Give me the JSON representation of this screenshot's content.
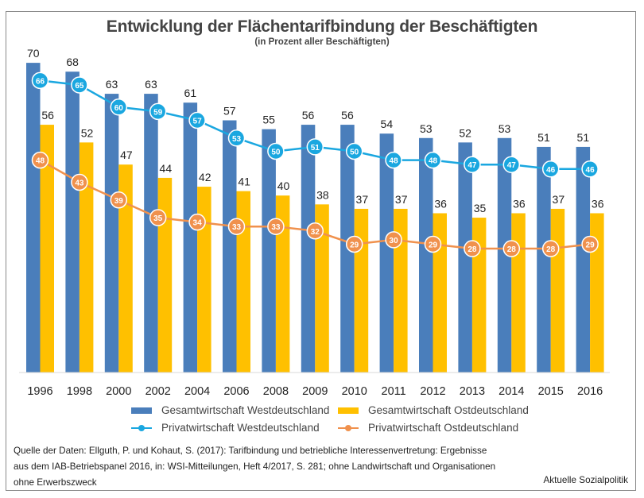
{
  "chart_data": {
    "type": "bar",
    "title": "Entwicklung der Flächentarifbindung der Beschäftigten",
    "subtitle": "(in Prozent aller Beschäftigten)",
    "xlabel": "",
    "ylabel": "",
    "ylim": [
      0,
      70
    ],
    "grid": false,
    "legend_position": "bottom",
    "categories": [
      "1996",
      "1998",
      "2000",
      "2002",
      "2004",
      "2006",
      "2008",
      "2009",
      "2010",
      "2011",
      "2012",
      "2013",
      "2014",
      "2015",
      "2016"
    ],
    "series": [
      {
        "name": "Gesamtwirtschaft Westdeutschland",
        "kind": "bar",
        "color": "#4a7ebb",
        "values": [
          70,
          68,
          63,
          63,
          61,
          57,
          55,
          56,
          56,
          54,
          53,
          52,
          53,
          51,
          51
        ]
      },
      {
        "name": "Gesamtwirtschaft Ostdeutschland",
        "kind": "bar",
        "color": "#ffc000",
        "values": [
          56,
          52,
          47,
          44,
          42,
          41,
          40,
          38,
          37,
          37,
          36,
          35,
          36,
          37,
          36
        ]
      },
      {
        "name": "Privatwirtschaft Westdeutschland",
        "kind": "line",
        "color": "#1aa7e0",
        "values": [
          66,
          65,
          60,
          59,
          57,
          53,
          50,
          51,
          50,
          48,
          48,
          47,
          47,
          46,
          46
        ]
      },
      {
        "name": "Privatwirtschaft Ostdeutschland",
        "kind": "line",
        "color": "#f0914d",
        "values": [
          48,
          43,
          39,
          35,
          34,
          33,
          33,
          32,
          29,
          30,
          29,
          28,
          28,
          28,
          29
        ]
      }
    ]
  },
  "legend": {
    "items": [
      {
        "label": "Gesamtwirtschaft Westdeutschland",
        "color": "#4a7ebb"
      },
      {
        "label": "Gesamtwirtschaft Ostdeutschland",
        "color": "#ffc000"
      },
      {
        "label": "Privatwirtschaft Westdeutschland",
        "color": "#1aa7e0"
      },
      {
        "label": "Privatwirtschaft Ostdeutschland",
        "color": "#f0914d"
      }
    ]
  },
  "footer": {
    "source_line1": "Quelle der Daten: Ellguth, P. und Kohaut, S. (2017): Tarifbindung und betriebliche Interessenvertretung: Ergebnisse",
    "source_line2": "aus dem IAB-Betriebspanel 2016, in: WSI-Mitteilungen, Heft 4/2017, S. 281; ohne Landwirtschaft und Organisationen",
    "source_line3": "ohne Erwerbszweck",
    "credit": "Aktuelle Sozialpolitik"
  }
}
